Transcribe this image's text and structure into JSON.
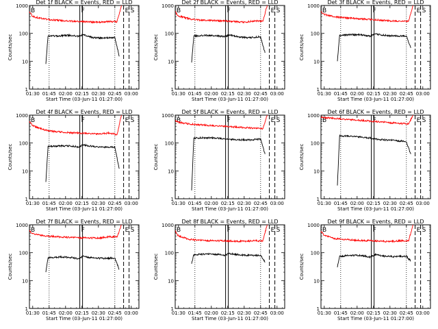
{
  "figure": {
    "ylabel": "Counts/sec",
    "xlabel": "Start Time (03-Jun-11 01:27:00)",
    "x_tick_labels": [
      "01:30",
      "01:45",
      "02:00",
      "02:15",
      "02:30",
      "02:45",
      "03:00"
    ],
    "y_tick_labels": [
      "1",
      "10",
      "100",
      "1000"
    ],
    "marker_letters": [
      "B",
      "F",
      "E",
      "S"
    ]
  },
  "colors": {
    "events": "#000000",
    "lld": "#ff0000",
    "axes": "#000000"
  },
  "chart_data": [
    {
      "type": "line",
      "title": "Det 1f BLACK = Events, RED = LLD",
      "xlim": [
        "01:27",
        "03:07"
      ],
      "ylim": [
        1,
        1000
      ],
      "y_scale": "log",
      "x_ticks": [
        "01:30",
        "01:45",
        "02:00",
        "02:15",
        "02:30",
        "02:45",
        "03:00"
      ],
      "markers": [
        {
          "label": "B",
          "time": "01:27"
        },
        {
          "label": "F",
          "time": "02:13"
        },
        {
          "label": "E",
          "time": "02:53"
        },
        {
          "label": "S",
          "time": "02:58"
        }
      ],
      "series": [
        {
          "name": "Events",
          "color": "#000000",
          "x": [
            "01:42",
            "01:44",
            "01:55",
            "02:05",
            "02:12",
            "02:16",
            "02:25",
            "02:35",
            "02:45",
            "02:49"
          ],
          "y": [
            8,
            80,
            82,
            85,
            78,
            90,
            70,
            68,
            72,
            15
          ]
        },
        {
          "name": "LLD",
          "color": "#ff0000",
          "x": [
            "01:27",
            "01:30",
            "01:40",
            "01:50",
            "02:00",
            "02:10",
            "02:20",
            "02:30",
            "02:40",
            "02:47",
            "02:51"
          ],
          "y": [
            600,
            400,
            330,
            300,
            280,
            270,
            260,
            250,
            270,
            260,
            1000
          ]
        }
      ]
    },
    {
      "type": "line",
      "title": "Det 2f BLACK = Events, RED = LLD",
      "xlim": [
        "01:27",
        "03:07"
      ],
      "ylim": [
        1,
        1000
      ],
      "y_scale": "log",
      "x_ticks": [
        "01:30",
        "01:45",
        "02:00",
        "02:15",
        "02:30",
        "02:45",
        "03:00"
      ],
      "markers": [
        {
          "label": "B",
          "time": "01:27"
        },
        {
          "label": "F",
          "time": "02:13"
        },
        {
          "label": "E",
          "time": "02:53"
        },
        {
          "label": "S",
          "time": "02:58"
        }
      ],
      "series": [
        {
          "name": "Events",
          "color": "#000000",
          "x": [
            "01:42",
            "01:44",
            "01:55",
            "02:05",
            "02:12",
            "02:16",
            "02:25",
            "02:35",
            "02:45",
            "02:49"
          ],
          "y": [
            9,
            80,
            85,
            82,
            76,
            88,
            75,
            70,
            75,
            20
          ]
        },
        {
          "name": "LLD",
          "color": "#ff0000",
          "x": [
            "01:27",
            "01:30",
            "01:40",
            "01:50",
            "02:00",
            "02:10",
            "02:20",
            "02:30",
            "02:40",
            "02:47",
            "02:51"
          ],
          "y": [
            600,
            420,
            330,
            300,
            290,
            280,
            270,
            250,
            280,
            270,
            1000
          ]
        }
      ]
    },
    {
      "type": "line",
      "title": "Det 3f BLACK = Events, RED = LLD",
      "xlim": [
        "01:27",
        "03:07"
      ],
      "ylim": [
        1,
        1000
      ],
      "y_scale": "log",
      "x_ticks": [
        "01:30",
        "01:45",
        "02:00",
        "02:15",
        "02:30",
        "02:45",
        "03:00"
      ],
      "markers": [
        {
          "label": "B",
          "time": "01:27"
        },
        {
          "label": "F",
          "time": "02:13"
        },
        {
          "label": "E",
          "time": "02:53"
        },
        {
          "label": "S",
          "time": "02:58"
        }
      ],
      "series": [
        {
          "name": "Events",
          "color": "#000000",
          "x": [
            "01:42",
            "01:44",
            "01:55",
            "02:05",
            "02:12",
            "02:16",
            "02:25",
            "02:35",
            "02:45",
            "02:49"
          ],
          "y": [
            10,
            85,
            90,
            88,
            80,
            95,
            85,
            80,
            80,
            30
          ]
        },
        {
          "name": "LLD",
          "color": "#ff0000",
          "x": [
            "01:27",
            "01:30",
            "01:40",
            "01:50",
            "02:00",
            "02:10",
            "02:20",
            "02:30",
            "02:40",
            "02:47",
            "02:51"
          ],
          "y": [
            600,
            480,
            390,
            360,
            340,
            320,
            300,
            280,
            270,
            270,
            1000
          ]
        }
      ]
    },
    {
      "type": "line",
      "title": "Det 4f BLACK = Events, RED = LLD",
      "xlim": [
        "01:27",
        "03:07"
      ],
      "ylim": [
        1,
        1000
      ],
      "y_scale": "log",
      "x_ticks": [
        "01:30",
        "01:45",
        "02:00",
        "02:15",
        "02:30",
        "02:45",
        "03:00"
      ],
      "markers": [
        {
          "label": "B",
          "time": "01:27"
        },
        {
          "label": "F",
          "time": "02:13"
        },
        {
          "label": "E",
          "time": "02:53"
        },
        {
          "label": "S",
          "time": "02:58"
        }
      ],
      "series": [
        {
          "name": "Events",
          "color": "#000000",
          "x": [
            "01:42",
            "01:44",
            "01:55",
            "02:05",
            "02:12",
            "02:16",
            "02:25",
            "02:35",
            "02:45",
            "02:49"
          ],
          "y": [
            4,
            75,
            80,
            78,
            72,
            85,
            75,
            70,
            72,
            12
          ]
        },
        {
          "name": "LLD",
          "color": "#ff0000",
          "x": [
            "01:27",
            "01:30",
            "01:40",
            "01:50",
            "02:00",
            "02:10",
            "02:20",
            "02:30",
            "02:40",
            "02:47",
            "02:51"
          ],
          "y": [
            600,
            420,
            300,
            260,
            240,
            230,
            220,
            210,
            230,
            200,
            1000
          ]
        }
      ]
    },
    {
      "type": "line",
      "title": "Det 5f BLACK = Events, RED = LLD",
      "xlim": [
        "01:27",
        "03:07"
      ],
      "ylim": [
        1,
        1000
      ],
      "y_scale": "log",
      "x_ticks": [
        "01:30",
        "01:45",
        "02:00",
        "02:15",
        "02:30",
        "02:45",
        "03:00"
      ],
      "markers": [
        {
          "label": "B",
          "time": "01:27"
        },
        {
          "label": "F",
          "time": "02:13"
        },
        {
          "label": "E",
          "time": "02:53"
        },
        {
          "label": "S",
          "time": "02:58"
        }
      ],
      "series": [
        {
          "name": "Events",
          "color": "#000000",
          "x": [
            "01:42",
            "01:44",
            "01:55",
            "02:05",
            "02:12",
            "02:16",
            "02:25",
            "02:35",
            "02:45",
            "02:49"
          ],
          "y": [
            2,
            150,
            155,
            150,
            140,
            135,
            130,
            130,
            140,
            40
          ]
        },
        {
          "name": "LLD",
          "color": "#ff0000",
          "x": [
            "01:27",
            "01:30",
            "01:40",
            "01:50",
            "02:00",
            "02:10",
            "02:20",
            "02:30",
            "02:40",
            "02:47",
            "02:51"
          ],
          "y": [
            650,
            560,
            480,
            450,
            420,
            400,
            380,
            360,
            340,
            330,
            1000
          ]
        }
      ]
    },
    {
      "type": "line",
      "title": "Det 6f BLACK = Events, RED = LLD",
      "xlim": [
        "01:27",
        "03:07"
      ],
      "ylim": [
        1,
        1000
      ],
      "y_scale": "log",
      "x_ticks": [
        "01:30",
        "01:45",
        "02:00",
        "02:15",
        "02:30",
        "02:45",
        "03:00"
      ],
      "markers": [
        {
          "label": "B",
          "time": "01:27"
        },
        {
          "label": "F",
          "time": "02:13"
        },
        {
          "label": "E",
          "time": "02:53"
        },
        {
          "label": "S",
          "time": "02:58"
        }
      ],
      "series": [
        {
          "name": "Events",
          "color": "#000000",
          "x": [
            "01:42",
            "01:44",
            "01:55",
            "02:05",
            "02:12",
            "02:16",
            "02:25",
            "02:35",
            "02:45",
            "02:49"
          ],
          "y": [
            3,
            180,
            175,
            160,
            150,
            140,
            130,
            125,
            110,
            40
          ]
        },
        {
          "name": "LLD",
          "color": "#ff0000",
          "x": [
            "01:27",
            "01:30",
            "01:40",
            "01:50",
            "02:00",
            "02:10",
            "02:20",
            "02:30",
            "02:40",
            "02:47",
            "02:51"
          ],
          "y": [
            850,
            820,
            760,
            700,
            660,
            620,
            580,
            540,
            500,
            480,
            1000
          ]
        }
      ]
    },
    {
      "type": "line",
      "title": "Det 7f BLACK = Events, RED = LLD",
      "xlim": [
        "01:27",
        "03:07"
      ],
      "ylim": [
        1,
        1000
      ],
      "y_scale": "log",
      "x_ticks": [
        "01:30",
        "01:45",
        "02:00",
        "02:15",
        "02:30",
        "02:45",
        "03:00"
      ],
      "markers": [
        {
          "label": "B",
          "time": "01:27"
        },
        {
          "label": "F",
          "time": "02:13"
        },
        {
          "label": "E",
          "time": "02:53"
        },
        {
          "label": "S",
          "time": "02:58"
        }
      ],
      "series": [
        {
          "name": "Events",
          "color": "#000000",
          "x": [
            "01:42",
            "01:44",
            "01:55",
            "02:05",
            "02:12",
            "02:16",
            "02:25",
            "02:35",
            "02:45",
            "02:49"
          ],
          "y": [
            20,
            65,
            70,
            68,
            60,
            75,
            65,
            62,
            65,
            25
          ]
        },
        {
          "name": "LLD",
          "color": "#ff0000",
          "x": [
            "01:27",
            "01:30",
            "01:40",
            "01:50",
            "02:00",
            "02:10",
            "02:20",
            "02:30",
            "02:40",
            "02:47",
            "02:51"
          ],
          "y": [
            600,
            480,
            400,
            380,
            360,
            350,
            340,
            330,
            380,
            360,
            1000
          ]
        }
      ]
    },
    {
      "type": "line",
      "title": "Det 8f BLACK = Events, RED = LLD",
      "xlim": [
        "01:27",
        "03:07"
      ],
      "ylim": [
        1,
        1000
      ],
      "y_scale": "log",
      "x_ticks": [
        "01:30",
        "01:45",
        "02:00",
        "02:15",
        "02:30",
        "02:45",
        "03:00"
      ],
      "markers": [
        {
          "label": "B",
          "time": "01:27"
        },
        {
          "label": "F",
          "time": "02:13"
        },
        {
          "label": "E",
          "time": "02:53"
        },
        {
          "label": "S",
          "time": "02:58"
        }
      ],
      "series": [
        {
          "name": "Events",
          "color": "#000000",
          "x": [
            "01:42",
            "01:44",
            "01:55",
            "02:05",
            "02:12",
            "02:16",
            "02:25",
            "02:35",
            "02:45",
            "02:49"
          ],
          "y": [
            40,
            85,
            90,
            88,
            80,
            92,
            85,
            80,
            80,
            45
          ]
        },
        {
          "name": "LLD",
          "color": "#ff0000",
          "x": [
            "01:27",
            "01:30",
            "01:40",
            "01:50",
            "02:00",
            "02:10",
            "02:20",
            "02:30",
            "02:40",
            "02:47",
            "02:51"
          ],
          "y": [
            600,
            400,
            300,
            280,
            270,
            265,
            260,
            255,
            270,
            260,
            1000
          ]
        }
      ]
    },
    {
      "type": "line",
      "title": "Det 9f BLACK = Events, RED = LLD",
      "xlim": [
        "01:27",
        "03:07"
      ],
      "ylim": [
        1,
        1000
      ],
      "y_scale": "log",
      "x_ticks": [
        "01:30",
        "01:45",
        "02:00",
        "02:15",
        "02:30",
        "02:45",
        "03:00"
      ],
      "markers": [
        {
          "label": "B",
          "time": "01:27"
        },
        {
          "label": "F",
          "time": "02:13"
        },
        {
          "label": "E",
          "time": "02:53"
        },
        {
          "label": "S",
          "time": "02:58"
        }
      ],
      "series": [
        {
          "name": "Events",
          "color": "#000000",
          "x": [
            "01:42",
            "01:44",
            "01:55",
            "02:05",
            "02:12",
            "02:16",
            "02:25",
            "02:35",
            "02:45",
            "02:49"
          ],
          "y": [
            30,
            75,
            80,
            78,
            70,
            85,
            75,
            72,
            75,
            50
          ]
        },
        {
          "name": "LLD",
          "color": "#ff0000",
          "x": [
            "01:27",
            "01:30",
            "01:40",
            "01:50",
            "02:00",
            "02:10",
            "02:20",
            "02:30",
            "02:40",
            "02:47",
            "02:51"
          ],
          "y": [
            600,
            420,
            320,
            290,
            280,
            270,
            260,
            250,
            270,
            260,
            1000
          ]
        }
      ]
    }
  ]
}
